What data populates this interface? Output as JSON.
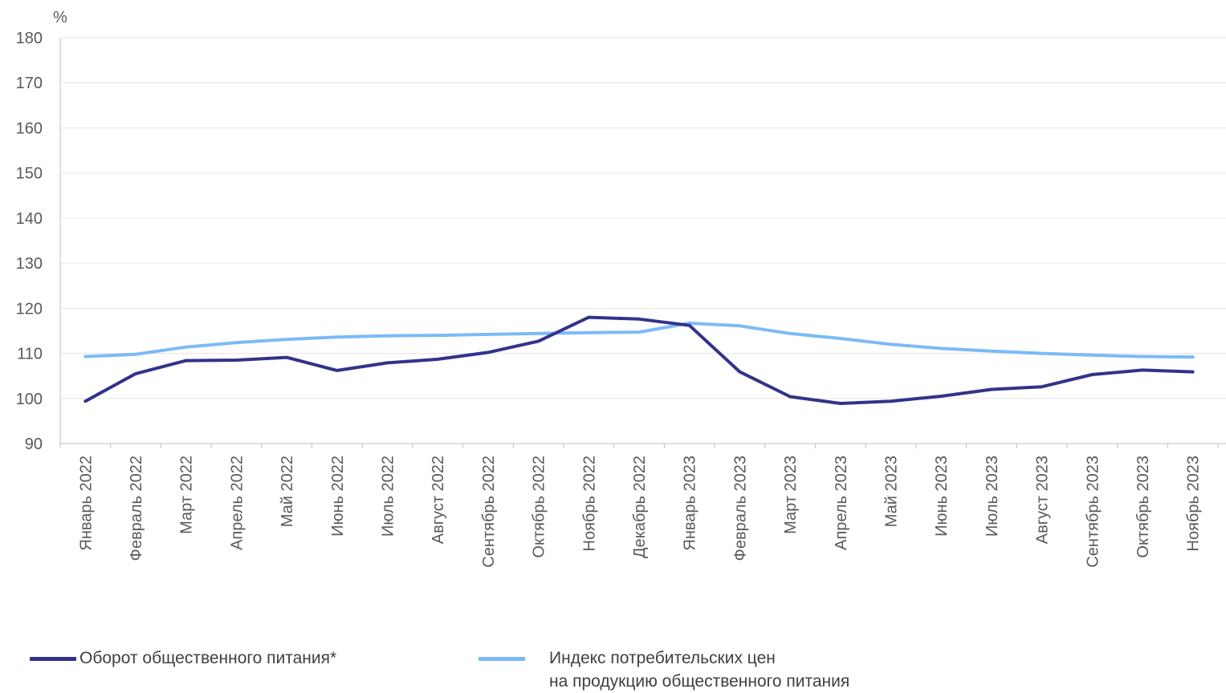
{
  "chart_data": {
    "type": "line",
    "y_unit": "%",
    "ylim": [
      90,
      180
    ],
    "y_ticks": [
      90,
      100,
      110,
      120,
      130,
      140,
      150,
      160,
      170,
      180
    ],
    "grid": true,
    "legend_position": "bottom",
    "categories": [
      "Январь 2022",
      "Февраль 2022",
      "Март 2022",
      "Апрель 2022",
      "Май 2022",
      "Июнь 2022",
      "Июль 2022",
      "Август 2022",
      "Сентябрь 2022",
      "Октябрь 2022",
      "Ноябрь 2022",
      "Декабрь 2022",
      "Январь 2023",
      "Февраль 2023",
      "Март 2023",
      "Апрель 2023",
      "Май 2023",
      "Июнь 2023",
      "Июль 2023",
      "Август 2023",
      "Сентябрь 2023",
      "Октябрь 2023",
      "Ноябрь 2023"
    ],
    "series": [
      {
        "name": "Оборот общественного питания*",
        "color": "#33328a",
        "values": [
          99.4,
          105.5,
          108.4,
          108.5,
          109.1,
          106.2,
          107.9,
          108.7,
          110.2,
          112.7,
          118.0,
          117.6,
          116.2,
          105.9,
          100.4,
          98.9,
          99.4,
          100.5,
          102.0,
          102.6,
          105.3,
          106.3,
          105.9
        ]
      },
      {
        "name": "Индекс потребительских цен\nна продукцию общественного питания",
        "color": "#7bbaf7",
        "values": [
          109.3,
          109.8,
          111.4,
          112.4,
          113.1,
          113.6,
          113.9,
          114.0,
          114.2,
          114.4,
          114.6,
          114.7,
          116.7,
          116.1,
          114.4,
          113.3,
          112.0,
          111.1,
          110.5,
          110.0,
          109.6,
          109.3,
          109.2
        ]
      }
    ]
  }
}
